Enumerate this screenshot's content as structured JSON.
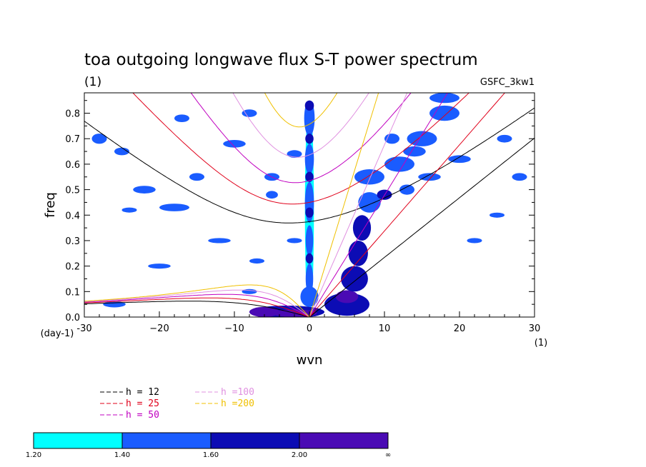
{
  "chart_data": {
    "type": "heatmap",
    "title": "toa outgoing longwave flux S-T power spectrum",
    "subtitle": "(1)",
    "source": "GSFC_3kw1",
    "xlabel": "wvn",
    "xunit": "(1)",
    "ylabel": "freq",
    "yunit": "(day-1)",
    "xlim": [
      -30,
      30
    ],
    "ylim": [
      0,
      0.88
    ],
    "xticks": [
      -30,
      -20,
      -10,
      0,
      10,
      20,
      30
    ],
    "xtick_labels": [
      "-30",
      "−20",
      "−10",
      "0",
      "10",
      "20",
      "30"
    ],
    "yticks": [
      0,
      0.1,
      0.2,
      0.3,
      0.4,
      0.5,
      0.6,
      0.7,
      0.8
    ],
    "ytick_labels": [
      "0.0",
      "0.1",
      "0.2",
      "0.3",
      "0.4",
      "0.5",
      "0.6",
      "0.7",
      "0.8"
    ],
    "dispersion_curves": [
      {
        "name": "h = 12",
        "h": 12,
        "color": "#000000"
      },
      {
        "name": "h = 25",
        "h": 25,
        "color": "#e0001a"
      },
      {
        "name": "h = 50",
        "h": 50,
        "color": "#c000c0"
      },
      {
        "name": "h =100",
        "h": 100,
        "color": "#e090e0"
      },
      {
        "name": "h =200",
        "h": 200,
        "color": "#f0c000"
      }
    ],
    "colorbar": {
      "levels": [
        "1.20",
        "1.40",
        "1.60",
        "2.00",
        "∞"
      ],
      "colors": [
        "#00ffff",
        "#1a5cff",
        "#0c0cb4",
        "#4a0ab4"
      ]
    },
    "contours": [
      {
        "x": 0,
        "y": 0.42,
        "rx": 0.6,
        "ry": 0.43,
        "level": 0
      },
      {
        "x": 0,
        "y": 0.78,
        "rx": 0.7,
        "ry": 0.07,
        "level": 1
      },
      {
        "x": 0,
        "y": 0.62,
        "rx": 0.6,
        "ry": 0.06,
        "level": 1
      },
      {
        "x": 0,
        "y": 0.45,
        "rx": 0.6,
        "ry": 0.08,
        "level": 1
      },
      {
        "x": 0,
        "y": 0.3,
        "rx": 0.5,
        "ry": 0.06,
        "level": 1
      },
      {
        "x": 0,
        "y": 0.15,
        "rx": 0.5,
        "ry": 0.06,
        "level": 1
      },
      {
        "x": 0,
        "y": 0.83,
        "rx": 0.6,
        "ry": 0.02,
        "level": 2
      },
      {
        "x": 0,
        "y": 0.7,
        "rx": 0.55,
        "ry": 0.02,
        "level": 2
      },
      {
        "x": 0,
        "y": 0.41,
        "rx": 0.55,
        "ry": 0.02,
        "level": 2
      },
      {
        "x": 0,
        "y": 0.55,
        "rx": 0.55,
        "ry": 0.02,
        "level": 2
      },
      {
        "x": 0,
        "y": 0.23,
        "rx": 0.5,
        "ry": 0.02,
        "level": 2
      },
      {
        "x": 0,
        "y": 0.08,
        "rx": 1.2,
        "ry": 0.04,
        "level": 1
      },
      {
        "x": -3,
        "y": 0.02,
        "rx": 5,
        "ry": 0.025,
        "level": 2
      },
      {
        "x": -2,
        "y": 0.015,
        "rx": 3,
        "ry": 0.015,
        "level": 3
      },
      {
        "x": -6,
        "y": 0.02,
        "rx": 2,
        "ry": 0.02,
        "level": 3
      },
      {
        "x": 5,
        "y": 0.05,
        "rx": 3,
        "ry": 0.045,
        "level": 2
      },
      {
        "x": 5,
        "y": 0.08,
        "rx": 1.5,
        "ry": 0.025,
        "level": 3
      },
      {
        "x": 6,
        "y": 0.15,
        "rx": 1.8,
        "ry": 0.05,
        "level": 2
      },
      {
        "x": 6.5,
        "y": 0.25,
        "rx": 1.3,
        "ry": 0.05,
        "level": 2
      },
      {
        "x": 7,
        "y": 0.35,
        "rx": 1.2,
        "ry": 0.05,
        "level": 2
      },
      {
        "x": 8,
        "y": 0.45,
        "rx": 1.5,
        "ry": 0.04,
        "level": 1
      },
      {
        "x": 10,
        "y": 0.48,
        "rx": 1,
        "ry": 0.02,
        "level": 2
      },
      {
        "x": 12,
        "y": 0.6,
        "rx": 2,
        "ry": 0.03,
        "level": 1
      },
      {
        "x": 15,
        "y": 0.7,
        "rx": 2,
        "ry": 0.03,
        "level": 1
      },
      {
        "x": 18,
        "y": 0.8,
        "rx": 2,
        "ry": 0.03,
        "level": 1
      },
      {
        "x": 8,
        "y": 0.55,
        "rx": 2,
        "ry": 0.03,
        "level": 1
      },
      {
        "x": 14,
        "y": 0.65,
        "rx": 1.5,
        "ry": 0.02,
        "level": 1
      },
      {
        "x": 16,
        "y": 0.55,
        "rx": 1.5,
        "ry": 0.015,
        "level": 1
      },
      {
        "x": 18,
        "y": 0.86,
        "rx": 2,
        "ry": 0.02,
        "level": 1
      },
      {
        "x": 13,
        "y": 0.5,
        "rx": 1,
        "ry": 0.02,
        "level": 1
      },
      {
        "x": -28,
        "y": 0.7,
        "rx": 1,
        "ry": 0.02,
        "level": 1
      },
      {
        "x": -25,
        "y": 0.65,
        "rx": 1,
        "ry": 0.015,
        "level": 1
      },
      {
        "x": -22,
        "y": 0.5,
        "rx": 1.5,
        "ry": 0.015,
        "level": 1
      },
      {
        "x": -18,
        "y": 0.43,
        "rx": 2,
        "ry": 0.015,
        "level": 1
      },
      {
        "x": -15,
        "y": 0.55,
        "rx": 1,
        "ry": 0.015,
        "level": 1
      },
      {
        "x": -10,
        "y": 0.68,
        "rx": 1.5,
        "ry": 0.015,
        "level": 1
      },
      {
        "x": -8,
        "y": 0.8,
        "rx": 1,
        "ry": 0.015,
        "level": 1
      },
      {
        "x": -17,
        "y": 0.78,
        "rx": 1,
        "ry": 0.015,
        "level": 1
      },
      {
        "x": -20,
        "y": 0.2,
        "rx": 1.5,
        "ry": 0.01,
        "level": 1
      },
      {
        "x": -12,
        "y": 0.3,
        "rx": 1.5,
        "ry": 0.01,
        "level": 1
      },
      {
        "x": -5,
        "y": 0.55,
        "rx": 1,
        "ry": 0.015,
        "level": 1
      },
      {
        "x": -5,
        "y": 0.48,
        "rx": 0.8,
        "ry": 0.015,
        "level": 1
      },
      {
        "x": -24,
        "y": 0.42,
        "rx": 1,
        "ry": 0.01,
        "level": 1
      },
      {
        "x": 22,
        "y": 0.3,
        "rx": 1,
        "ry": 0.01,
        "level": 1
      },
      {
        "x": 25,
        "y": 0.4,
        "rx": 1,
        "ry": 0.01,
        "level": 1
      },
      {
        "x": 20,
        "y": 0.62,
        "rx": 1.5,
        "ry": 0.015,
        "level": 1
      },
      {
        "x": 26,
        "y": 0.7,
        "rx": 1,
        "ry": 0.015,
        "level": 1
      },
      {
        "x": 28,
        "y": 0.55,
        "rx": 1,
        "ry": 0.015,
        "level": 1
      },
      {
        "x": -8,
        "y": 0.1,
        "rx": 1,
        "ry": 0.01,
        "level": 1
      },
      {
        "x": -26,
        "y": 0.05,
        "rx": 1.5,
        "ry": 0.012,
        "level": 1
      },
      {
        "x": 11,
        "y": 0.7,
        "rx": 1,
        "ry": 0.02,
        "level": 1
      },
      {
        "x": -2,
        "y": 0.64,
        "rx": 1,
        "ry": 0.015,
        "level": 1
      },
      {
        "x": -2,
        "y": 0.3,
        "rx": 1,
        "ry": 0.01,
        "level": 1
      },
      {
        "x": -7,
        "y": 0.22,
        "rx": 1,
        "ry": 0.01,
        "level": 1
      }
    ]
  }
}
